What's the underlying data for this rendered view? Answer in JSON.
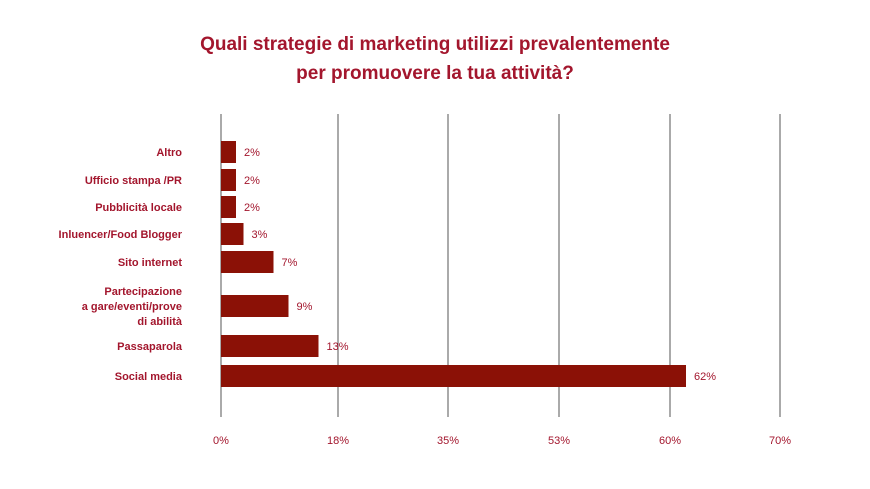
{
  "colors": {
    "title": "#a3162d",
    "bar": "#8b1106",
    "label": "#a3162d",
    "grid": "#555555"
  },
  "chart_data": {
    "type": "bar",
    "orientation": "horizontal",
    "title_lines": [
      "Quali strategie di marketing utilizzi prevalentemente",
      "per promuovere la tua attività?"
    ],
    "categories": [
      [
        "Altro"
      ],
      [
        "Ufficio stampa /PR"
      ],
      [
        "Pubblicità locale"
      ],
      [
        "Inluencer/Food Blogger"
      ],
      [
        "Sito internet"
      ],
      [
        "Partecipazione",
        "a gare/eventi/prove",
        "di abilità"
      ],
      [
        "Passaparola"
      ],
      [
        "Social media"
      ]
    ],
    "values": [
      2,
      2,
      2,
      3,
      7,
      9,
      13,
      62
    ],
    "value_labels": [
      "2%",
      "2%",
      "2%",
      "3%",
      "7%",
      "9%",
      "13%",
      "62%"
    ],
    "x_tick_labels": [
      "0%",
      "18%",
      "35%",
      "53%",
      "60%",
      "70%"
    ],
    "xlim": [
      0,
      75
    ],
    "grid": "vertical",
    "legend": "none"
  }
}
